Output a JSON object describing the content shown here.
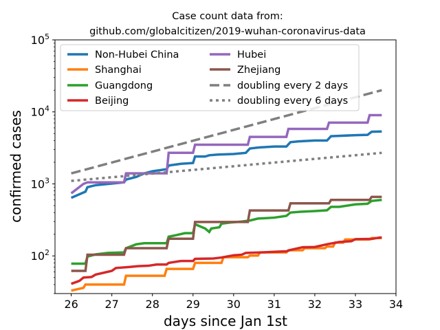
{
  "chart_data": {
    "type": "line",
    "title": [
      "Case count data from:",
      "github.com/globalcitizen/2019-wuhan-coronavirus-data"
    ],
    "xlabel": "days since Jan 1st",
    "ylabel": "confirmed cases",
    "xlim": [
      25.6,
      34
    ],
    "ylim": [
      30,
      100000
    ],
    "yscale": "log",
    "xticks": [
      26,
      27,
      28,
      29,
      30,
      31,
      32,
      33,
      34
    ],
    "yticks": [
      {
        "value": 100,
        "base": "10",
        "exp": "2"
      },
      {
        "value": 1000,
        "base": "10",
        "exp": "3"
      },
      {
        "value": 10000,
        "base": "10",
        "exp": "4"
      },
      {
        "value": 100000,
        "base": "10",
        "exp": "5"
      }
    ],
    "legend_position": "upper-left",
    "series": [
      {
        "name": "Non-Hubei China",
        "color": "#1f77b4",
        "style": "solid",
        "points": [
          [
            26.0,
            640
          ],
          [
            26.35,
            780
          ],
          [
            26.4,
            900
          ],
          [
            26.6,
            960
          ],
          [
            27.3,
            1050
          ],
          [
            27.35,
            1150
          ],
          [
            27.6,
            1250
          ],
          [
            27.8,
            1400
          ],
          [
            28.0,
            1500
          ],
          [
            28.35,
            1600
          ],
          [
            28.4,
            1800
          ],
          [
            28.7,
            1900
          ],
          [
            29.0,
            1950
          ],
          [
            29.05,
            2400
          ],
          [
            29.3,
            2400
          ],
          [
            29.4,
            2500
          ],
          [
            29.6,
            2550
          ],
          [
            30.0,
            2600
          ],
          [
            30.3,
            2700
          ],
          [
            30.4,
            3100
          ],
          [
            30.6,
            3200
          ],
          [
            31.0,
            3300
          ],
          [
            31.3,
            3300
          ],
          [
            31.4,
            3800
          ],
          [
            31.6,
            3900
          ],
          [
            32.0,
            4000
          ],
          [
            32.3,
            4000
          ],
          [
            32.4,
            4600
          ],
          [
            32.6,
            4650
          ],
          [
            33.0,
            4750
          ],
          [
            33.3,
            4800
          ],
          [
            33.4,
            5300
          ],
          [
            33.65,
            5350
          ]
        ]
      },
      {
        "name": "Shanghai",
        "color": "#ff7f0e",
        "style": "solid",
        "points": [
          [
            26.0,
            33
          ],
          [
            26.3,
            36
          ],
          [
            26.35,
            40
          ],
          [
            27.3,
            40
          ],
          [
            27.35,
            53
          ],
          [
            28.3,
            53
          ],
          [
            28.35,
            66
          ],
          [
            29.0,
            66
          ],
          [
            29.05,
            80
          ],
          [
            29.7,
            80
          ],
          [
            29.75,
            96
          ],
          [
            30.35,
            96
          ],
          [
            30.4,
            101
          ],
          [
            30.6,
            101
          ],
          [
            30.65,
            112
          ],
          [
            31.3,
            112
          ],
          [
            31.35,
            120
          ],
          [
            31.7,
            120
          ],
          [
            31.75,
            128
          ],
          [
            32.25,
            128
          ],
          [
            32.3,
            135
          ],
          [
            32.45,
            135
          ],
          [
            32.5,
            153
          ],
          [
            32.7,
            153
          ],
          [
            32.75,
            169
          ],
          [
            33.35,
            169
          ],
          [
            33.4,
            177
          ],
          [
            33.65,
            177
          ]
        ]
      },
      {
        "name": "Guangdong",
        "color": "#2ca02c",
        "style": "solid",
        "points": [
          [
            26.0,
            78
          ],
          [
            26.35,
            78
          ],
          [
            26.4,
            98
          ],
          [
            26.6,
            105
          ],
          [
            26.9,
            110
          ],
          [
            27.3,
            112
          ],
          [
            27.35,
            128
          ],
          [
            27.6,
            145
          ],
          [
            27.8,
            150
          ],
          [
            28.35,
            150
          ],
          [
            28.4,
            185
          ],
          [
            28.6,
            195
          ],
          [
            28.8,
            207
          ],
          [
            29.0,
            207
          ],
          [
            29.05,
            275
          ],
          [
            29.3,
            240
          ],
          [
            29.4,
            215
          ],
          [
            29.45,
            240
          ],
          [
            29.65,
            250
          ],
          [
            29.7,
            280
          ],
          [
            29.9,
            290
          ],
          [
            30.2,
            300
          ],
          [
            30.4,
            310
          ],
          [
            30.6,
            330
          ],
          [
            31.0,
            340
          ],
          [
            31.3,
            360
          ],
          [
            31.4,
            400
          ],
          [
            31.65,
            410
          ],
          [
            32.0,
            420
          ],
          [
            32.3,
            430
          ],
          [
            32.4,
            480
          ],
          [
            32.6,
            480
          ],
          [
            33.0,
            520
          ],
          [
            33.3,
            530
          ],
          [
            33.4,
            580
          ],
          [
            33.65,
            600
          ]
        ]
      },
      {
        "name": "Beijing",
        "color": "#d62728",
        "style": "solid",
        "points": [
          [
            26.0,
            41
          ],
          [
            26.2,
            45
          ],
          [
            26.3,
            50
          ],
          [
            26.5,
            51
          ],
          [
            26.6,
            55
          ],
          [
            27.0,
            62
          ],
          [
            27.1,
            68
          ],
          [
            27.4,
            70
          ],
          [
            27.65,
            72
          ],
          [
            27.9,
            73
          ],
          [
            28.1,
            76
          ],
          [
            28.35,
            76
          ],
          [
            28.4,
            80
          ],
          [
            28.7,
            85
          ],
          [
            29.0,
            85
          ],
          [
            29.05,
            91
          ],
          [
            29.5,
            92
          ],
          [
            29.7,
            95
          ],
          [
            30.0,
            102
          ],
          [
            30.2,
            104
          ],
          [
            30.3,
            110
          ],
          [
            30.7,
            112
          ],
          [
            31.0,
            114
          ],
          [
            31.3,
            116
          ],
          [
            31.4,
            121
          ],
          [
            31.7,
            132
          ],
          [
            32.0,
            133
          ],
          [
            32.3,
            145
          ],
          [
            32.6,
            156
          ],
          [
            32.9,
            160
          ],
          [
            33.0,
            171
          ],
          [
            33.4,
            172
          ],
          [
            33.6,
            180
          ],
          [
            33.65,
            180
          ]
        ]
      },
      {
        "name": "Hubei",
        "color": "#9467bd",
        "style": "solid",
        "points": [
          [
            26.0,
            740
          ],
          [
            26.3,
            1000
          ],
          [
            26.4,
            1050
          ],
          [
            27.3,
            1050
          ],
          [
            27.35,
            1400
          ],
          [
            28.35,
            1400
          ],
          [
            28.4,
            2700
          ],
          [
            29.0,
            2700
          ],
          [
            29.05,
            3500
          ],
          [
            30.35,
            3500
          ],
          [
            30.4,
            4500
          ],
          [
            31.3,
            4500
          ],
          [
            31.35,
            5800
          ],
          [
            32.3,
            5800
          ],
          [
            32.35,
            7100
          ],
          [
            33.3,
            7100
          ],
          [
            33.35,
            9000
          ],
          [
            33.65,
            9000
          ]
        ]
      },
      {
        "name": "Zhejiang",
        "color": "#8c564b",
        "style": "solid",
        "points": [
          [
            26.0,
            62
          ],
          [
            26.35,
            62
          ],
          [
            26.4,
            104
          ],
          [
            27.3,
            104
          ],
          [
            27.35,
            128
          ],
          [
            28.35,
            128
          ],
          [
            28.4,
            173
          ],
          [
            29.0,
            173
          ],
          [
            29.05,
            296
          ],
          [
            30.35,
            296
          ],
          [
            30.4,
            428
          ],
          [
            31.35,
            428
          ],
          [
            31.4,
            537
          ],
          [
            32.35,
            537
          ],
          [
            32.4,
            599
          ],
          [
            33.35,
            599
          ],
          [
            33.4,
            661
          ],
          [
            33.65,
            661
          ]
        ]
      },
      {
        "name": "doubling every 2 days",
        "color": "#7f7f7f",
        "style": "dashed",
        "points": [
          [
            26.0,
            1400
          ],
          [
            33.65,
            20000
          ]
        ]
      },
      {
        "name": "doubling every 6 days",
        "color": "#7f7f7f",
        "style": "dotted",
        "points": [
          [
            26.0,
            1100
          ],
          [
            33.65,
            2700
          ]
        ]
      }
    ]
  }
}
